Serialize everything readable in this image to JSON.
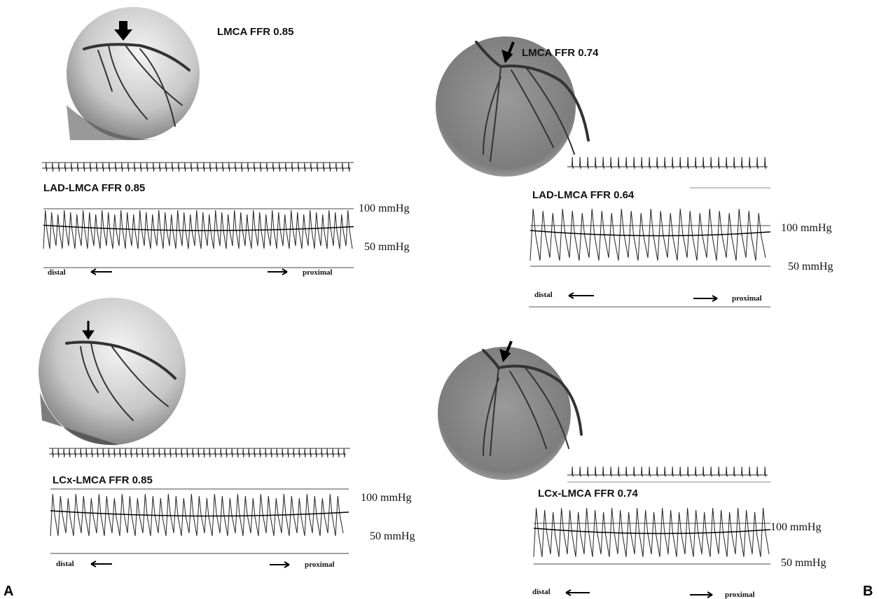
{
  "panels": [
    {
      "label": "A",
      "top": {
        "title": "LMCA FFR 0.85",
        "tracing_title": "LAD-LMCA FFR 0.85",
        "upper_pressure": "100 mmHg",
        "lower_pressure": "50 mmHg",
        "left_direction": "distal",
        "right_direction": "proximal"
      },
      "bottom": {
        "tracing_title": "LCx-LMCA FFR 0.85",
        "upper_pressure": "100 mmHg",
        "lower_pressure": "50 mmHg",
        "left_direction": "distal",
        "right_direction": "proximal"
      }
    },
    {
      "label": "B",
      "top": {
        "title": "LMCA FFR 0.74",
        "tracing_title": "LAD-LMCA FFR 0.64",
        "upper_pressure": "100 mmHg",
        "lower_pressure": "50 mmHg",
        "left_direction": "distal",
        "right_direction": "proximal"
      },
      "bottom": {
        "tracing_title": "LCx-LMCA FFR 0.74",
        "upper_pressure": "100 mmHg",
        "lower_pressure": "50 mmHg",
        "left_direction": "distal",
        "right_direction": "proximal"
      }
    }
  ]
}
